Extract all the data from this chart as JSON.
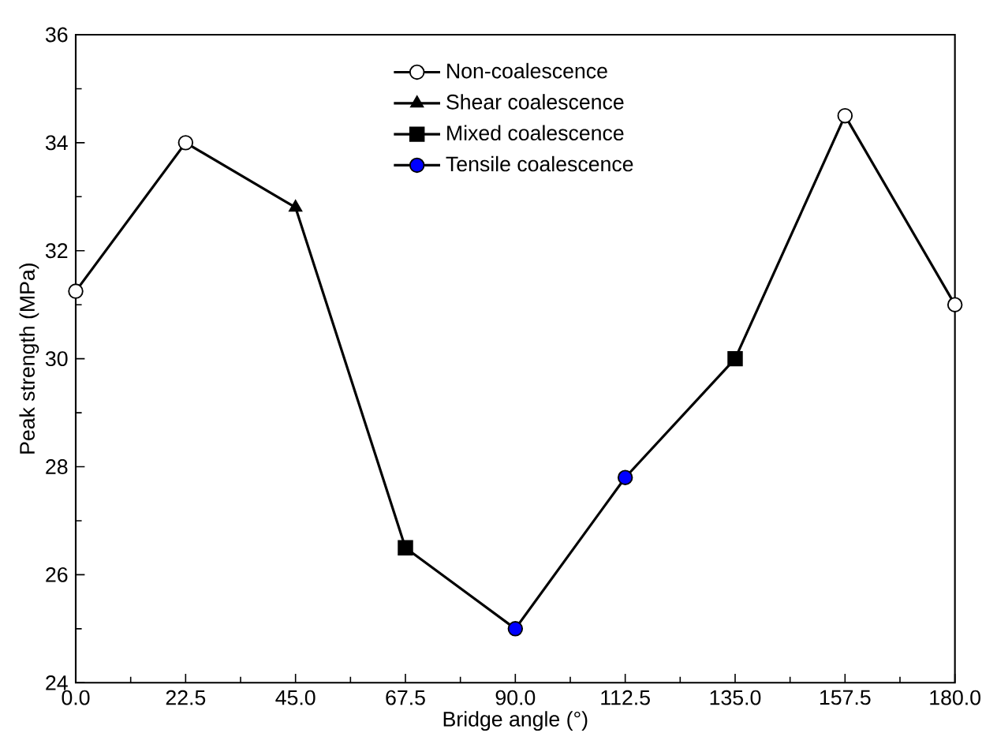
{
  "chart_data": {
    "type": "line",
    "xlabel": "Bridge angle (°)",
    "ylabel": "Peak strength (MPa)",
    "xlim": [
      0,
      180
    ],
    "ylim": [
      24,
      36
    ],
    "xticks": [
      {
        "value": 0,
        "label": "0.0"
      },
      {
        "value": 22.5,
        "label": "22.5"
      },
      {
        "value": 45,
        "label": "45.0"
      },
      {
        "value": 67.5,
        "label": "67.5"
      },
      {
        "value": 90,
        "label": "90.0"
      },
      {
        "value": 112.5,
        "label": "112.5"
      },
      {
        "value": 135,
        "label": "135.0"
      },
      {
        "value": 157.5,
        "label": "157.5"
      },
      {
        "value": 180,
        "label": "180.0"
      }
    ],
    "yticks": [
      24,
      26,
      28,
      30,
      32,
      34,
      36
    ],
    "grid": false,
    "legend": "top",
    "series": [
      {
        "color": "#000000",
        "marker": "none",
        "x": [
          0,
          22.5,
          45,
          67.5,
          90,
          112.5,
          135,
          157.5,
          180
        ],
        "values": [
          31.25,
          34.0,
          32.8,
          26.5,
          25.0,
          27.8,
          30.0,
          34.5,
          31.0
        ]
      },
      {
        "type": "scatter",
        "name": "Non-coalescence",
        "color": "#ffffff",
        "marker": "circle",
        "x": [
          0,
          22.5,
          157.5,
          180
        ],
        "values": [
          31.25,
          34.0,
          34.5,
          31.0
        ]
      },
      {
        "type": "scatter",
        "name": "Shear coalescence",
        "color": "#000000",
        "marker": "triangle",
        "x": [
          45
        ],
        "values": [
          32.8
        ]
      },
      {
        "type": "scatter",
        "name": "Mixed coalescence",
        "color": "#000000",
        "marker": "square",
        "x": [
          67.5,
          135
        ],
        "values": [
          26.5,
          30.0
        ]
      },
      {
        "type": "scatter",
        "name": "Tensile coalescence",
        "color": "#0000ff",
        "marker": "circle",
        "x": [
          90,
          112.5
        ],
        "values": [
          25.0,
          27.8
        ]
      }
    ]
  }
}
